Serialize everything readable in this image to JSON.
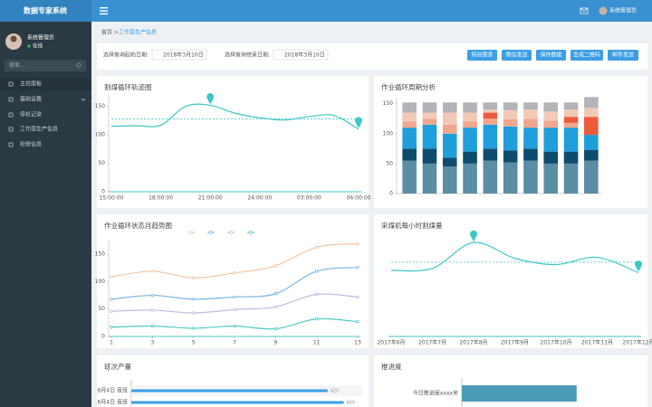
{
  "header": {
    "system_name": "数据专家系统",
    "user": "系统管理员"
  },
  "sidebar": {
    "user": "系统管理员",
    "status": "在线",
    "search_placeholder": "搜索...",
    "menu": [
      "主控面板",
      "基础设置",
      "停机记录",
      "工作面生产信息",
      "检修信息"
    ]
  },
  "breadcrumb": {
    "home": "首页",
    "separator": ">",
    "current": "工作面生产信息"
  },
  "filters": {
    "start_label": "选择查询起始日期:",
    "start_date": "2018年3月10日",
    "end_label": "选择查询结束日期:",
    "end_date": "2018年3月10日",
    "buttons": [
      "特别报表",
      "微信发送",
      "保存数据",
      "生成二维码",
      "邮件发送"
    ]
  },
  "chart_data": [
    {
      "type": "line",
      "title": "割煤循环轨迹图",
      "categories": [
        "15:00:00",
        null,
        "18:00:00",
        null,
        "21:00:00",
        null,
        "24:00:00",
        null,
        "03:00:00",
        null,
        "06:00:00"
      ],
      "values": [
        115,
        116,
        117,
        150,
        152,
        138,
        130,
        126,
        132,
        134,
        110
      ],
      "color": "#3fc6c6",
      "mean": 128,
      "ylim": [
        0,
        170
      ],
      "yticks": [
        0,
        50,
        100,
        150
      ]
    },
    {
      "type": "stacked_bar",
      "title": "作业循环周期分析",
      "categories": [
        null,
        null,
        null,
        null,
        null,
        null,
        null,
        null,
        null,
        null
      ],
      "series": [
        {
          "color": "#5b8ea5",
          "values": [
            55,
            50,
            45,
            50,
            55,
            52,
            55,
            50,
            50,
            55
          ]
        },
        {
          "color": "#0e4c6d",
          "values": [
            20,
            25,
            15,
            20,
            20,
            20,
            20,
            20,
            20,
            18
          ]
        },
        {
          "color": "#1e9fdb",
          "values": [
            35,
            40,
            40,
            40,
            40,
            40,
            35,
            40,
            40,
            25
          ]
        },
        {
          "color": "#f0a78d",
          "values": [
            10,
            10,
            15,
            10,
            10,
            12,
            15,
            12,
            8,
            0
          ]
        },
        {
          "color": "#ee5a3c",
          "values": [
            0,
            0,
            0,
            0,
            10,
            0,
            0,
            0,
            10,
            30
          ]
        },
        {
          "color": "#f2c9b6",
          "values": [
            15,
            10,
            20,
            15,
            5,
            15,
            15,
            15,
            12,
            15
          ]
        },
        {
          "color": "#b3b3b8",
          "values": [
            17,
            17,
            17,
            17,
            12,
            13,
            12,
            15,
            12,
            18
          ]
        }
      ],
      "ylim": [
        0,
        160
      ],
      "yticks": [
        0,
        50,
        100,
        150
      ]
    },
    {
      "type": "line",
      "title": "作业循环状态月趋势图",
      "x": [
        1,
        3,
        5,
        7,
        9,
        11,
        13
      ],
      "xlim": [
        1,
        13
      ],
      "xticks": [
        1,
        3,
        5,
        7,
        9,
        11,
        13
      ],
      "series": [
        {
          "color": "#f5c59f",
          "values": [
            109,
            119,
            107,
            116,
            129,
            163,
            169
          ]
        },
        {
          "color": "#78b6e4",
          "values": [
            68,
            75,
            68,
            72,
            78,
            119,
            126
          ]
        },
        {
          "color": "#c6b9dc",
          "values": [
            46,
            48,
            43,
            49,
            54,
            77,
            72
          ]
        },
        {
          "color": "#4ecbc4",
          "values": [
            17,
            19,
            15,
            19,
            14,
            32,
            27
          ]
        }
      ],
      "ylim": [
        0,
        175
      ],
      "yticks": [
        0,
        50,
        100,
        150
      ],
      "legend": "top"
    },
    {
      "type": "line",
      "title": "采煤机每小时割煤量",
      "categories": [
        "2017年6月",
        "2017年7月",
        "2017年8月",
        "2017年9月",
        "2017年10月",
        "2017年11月",
        "2017年12月"
      ],
      "values": [
        138,
        142,
        196,
        163,
        150,
        165,
        133
      ],
      "color": "#3fc6c6",
      "mean": 155,
      "ylim": [
        0,
        200
      ]
    },
    {
      "type": "hbar",
      "title": "班次产量",
      "categories": [
        "6月4日 夜班",
        "6月4日 夜班"
      ],
      "values": [
        425,
        460
      ],
      "color": "#3a9ee4",
      "xlim": [
        0,
        500
      ],
      "value_labels": true
    },
    {
      "type": "hbar",
      "title": "推进度",
      "categories": [
        "今日推进度xxxx米"
      ],
      "values": [
        65
      ],
      "color": "#4a9bb8",
      "xlim": [
        0,
        100
      ]
    }
  ]
}
